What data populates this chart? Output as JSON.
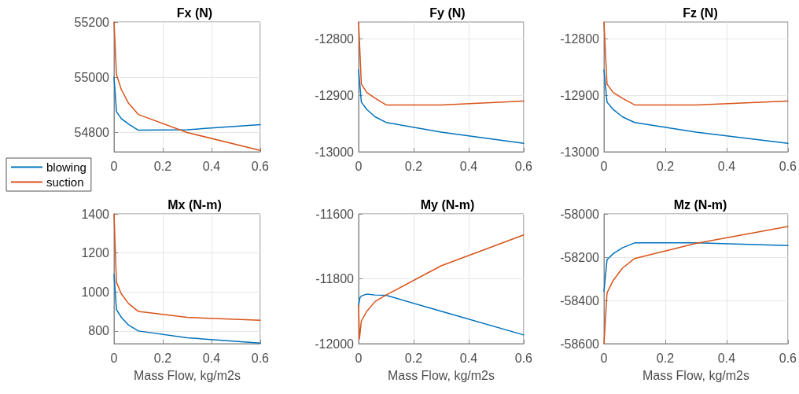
{
  "chart_data": [
    {
      "type": "line",
      "title": "Fx (N)",
      "xlim": [
        0,
        0.6
      ],
      "xticks": [
        0,
        0.2,
        0.4,
        0.6
      ],
      "ylim": [
        54730,
        55200
      ],
      "yticks": [
        54800,
        55000,
        55200
      ],
      "grid": true,
      "legend": "bottom left",
      "marker": "none",
      "line_style": "solid",
      "series": [
        {
          "name": "blowing",
          "color": "#0072bd",
          "x": [
            0,
            0.01,
            0.03,
            0.06,
            0.1,
            0.3,
            0.6
          ],
          "values": [
            55000,
            54875,
            54850,
            54830,
            54808,
            54810,
            54828
          ]
        },
        {
          "name": "suction",
          "color": "#d95319",
          "x": [
            0,
            0.01,
            0.03,
            0.06,
            0.1,
            0.3,
            0.6
          ],
          "values": [
            55200,
            55010,
            54955,
            54905,
            54865,
            54800,
            54735
          ]
        }
      ]
    },
    {
      "type": "line",
      "title": "Fy (N)",
      "xlim": [
        0,
        0.6
      ],
      "xticks": [
        0,
        0.2,
        0.4,
        0.6
      ],
      "ylim": [
        -13000,
        -12770
      ],
      "yticks": [
        -13000,
        -12900,
        -12800
      ],
      "grid": true,
      "marker": "none",
      "line_style": "solid",
      "series": [
        {
          "color": "#0072bd",
          "x": [
            0,
            0.01,
            0.03,
            0.06,
            0.1,
            0.3,
            0.6
          ],
          "values": [
            -12855,
            -12912,
            -12925,
            -12938,
            -12948,
            -12965,
            -12985
          ]
        },
        {
          "color": "#d95319",
          "x": [
            0,
            0.01,
            0.03,
            0.06,
            0.1,
            0.3,
            0.6
          ],
          "values": [
            -12770,
            -12880,
            -12895,
            -12905,
            -12917,
            -12917,
            -12910
          ]
        }
      ]
    },
    {
      "type": "line",
      "title": "Fz (N)",
      "xlim": [
        0,
        0.6
      ],
      "xticks": [
        0,
        0.2,
        0.4,
        0.6
      ],
      "ylim": [
        -13000,
        -12770
      ],
      "yticks": [
        -13000,
        -12900,
        -12800
      ],
      "grid": true,
      "marker": "none",
      "line_style": "solid",
      "series": [
        {
          "color": "#0072bd",
          "x": [
            0,
            0.01,
            0.03,
            0.06,
            0.1,
            0.3,
            0.6
          ],
          "values": [
            -12855,
            -12912,
            -12925,
            -12938,
            -12948,
            -12965,
            -12985
          ]
        },
        {
          "color": "#d95319",
          "x": [
            0,
            0.01,
            0.03,
            0.06,
            0.1,
            0.3,
            0.6
          ],
          "values": [
            -12770,
            -12880,
            -12895,
            -12905,
            -12917,
            -12917,
            -12910
          ]
        }
      ]
    },
    {
      "type": "line",
      "title": "Mx (N-m)",
      "xlabel": "Mass Flow, kg/m2s",
      "xlim": [
        0,
        0.6
      ],
      "xticks": [
        0,
        0.2,
        0.4,
        0.6
      ],
      "ylim": [
        735,
        1400
      ],
      "yticks": [
        800,
        1000,
        1200,
        1400
      ],
      "grid": true,
      "marker": "none",
      "line_style": "solid",
      "series": [
        {
          "color": "#0072bd",
          "x": [
            0,
            0.01,
            0.03,
            0.06,
            0.1,
            0.3,
            0.6
          ],
          "values": [
            1090,
            910,
            870,
            830,
            800,
            765,
            738
          ]
        },
        {
          "color": "#d95319",
          "x": [
            0,
            0.01,
            0.03,
            0.06,
            0.1,
            0.3,
            0.6
          ],
          "values": [
            1400,
            1050,
            990,
            940,
            900,
            870,
            855
          ]
        }
      ]
    },
    {
      "type": "line",
      "title": "My (N-m)",
      "xlabel": "Mass Flow, kg/m2s",
      "xlim": [
        0,
        0.6
      ],
      "xticks": [
        0,
        0.2,
        0.4,
        0.6
      ],
      "ylim": [
        -12000,
        -11600
      ],
      "yticks": [
        -12000,
        -11800,
        -11600
      ],
      "grid": true,
      "marker": "none",
      "line_style": "solid",
      "series": [
        {
          "color": "#0072bd",
          "x": [
            0,
            0.005,
            0.01,
            0.03,
            0.06,
            0.1,
            0.3,
            0.6
          ],
          "values": [
            -11882,
            -11858,
            -11853,
            -11847,
            -11850,
            -11851,
            -11900,
            -11973
          ]
        },
        {
          "color": "#d95319",
          "x": [
            0,
            0.003,
            0.01,
            0.03,
            0.06,
            0.1,
            0.3,
            0.6
          ],
          "values": [
            -11882,
            -11985,
            -11930,
            -11900,
            -11870,
            -11850,
            -11760,
            -11665
          ]
        }
      ]
    },
    {
      "type": "line",
      "title": "Mz (N-m)",
      "xlabel": "Mass Flow, kg/m2s",
      "xlim": [
        0,
        0.6
      ],
      "xticks": [
        0,
        0.2,
        0.4,
        0.6
      ],
      "ylim": [
        -58600,
        -58000
      ],
      "yticks": [
        -58600,
        -58400,
        -58200,
        -58000
      ],
      "grid": true,
      "marker": "none",
      "line_style": "solid",
      "series": [
        {
          "color": "#0072bd",
          "x": [
            0,
            0.01,
            0.03,
            0.06,
            0.1,
            0.3,
            0.6
          ],
          "values": [
            -58359,
            -58212,
            -58184,
            -58157,
            -58134,
            -58134,
            -58146
          ]
        },
        {
          "color": "#d95319",
          "x": [
            0,
            0.01,
            0.03,
            0.06,
            0.1,
            0.3,
            0.6
          ],
          "values": [
            -58600,
            -58365,
            -58308,
            -58251,
            -58206,
            -58136,
            -58058
          ]
        }
      ]
    }
  ]
}
